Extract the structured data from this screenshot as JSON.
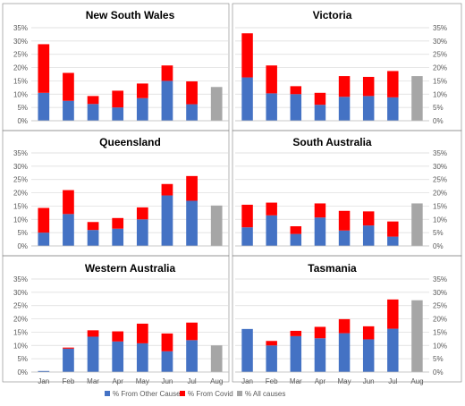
{
  "chart_data": {
    "type": "bar",
    "stacked": true,
    "categories": [
      "Jan",
      "Feb",
      "Mar",
      "Apr",
      "May",
      "Jun",
      "Jul",
      "Aug"
    ],
    "ylim": [
      0,
      35
    ],
    "yticks": [
      "0%",
      "5%",
      "10%",
      "15%",
      "20%",
      "25%",
      "30%",
      "35%"
    ],
    "grid": true,
    "legend_position": "bottom",
    "legend": [
      {
        "label": "% From Other Causes",
        "color": "#4472C4"
      },
      {
        "label": "% From Covid",
        "color": "#FF0000"
      },
      {
        "label": "% All causes",
        "color": "#A6A6A6"
      }
    ],
    "colors": {
      "other": "#4472C4",
      "covid": "#FF0000",
      "all": "#A6A6A6",
      "grid": "#D9D9D9",
      "frame": "#808080"
    },
    "panels": [
      {
        "title": "New South Wales",
        "other": [
          10.5,
          7.5,
          6.3,
          5.0,
          8.5,
          15.0,
          6.2,
          null
        ],
        "covid": [
          18.3,
          10.5,
          3.0,
          6.3,
          5.5,
          5.8,
          8.6,
          null
        ],
        "all_aug": 12.7
      },
      {
        "title": "Victoria",
        "other": [
          16.3,
          10.3,
          10.0,
          6.0,
          9.0,
          9.3,
          8.8,
          null
        ],
        "covid": [
          16.6,
          10.5,
          3.0,
          4.5,
          7.8,
          7.2,
          9.9,
          null
        ],
        "all_aug": 16.8
      },
      {
        "title": "Queensland",
        "other": [
          5.0,
          12.0,
          6.0,
          6.5,
          10.0,
          19.0,
          17.0,
          null
        ],
        "covid": [
          9.3,
          9.0,
          3.0,
          4.0,
          4.5,
          4.3,
          9.3,
          null
        ],
        "all_aug": 15.2
      },
      {
        "title": "South Australia",
        "other": [
          7.0,
          11.5,
          4.5,
          10.7,
          5.8,
          7.7,
          3.5,
          null
        ],
        "covid": [
          8.5,
          4.8,
          2.9,
          5.3,
          7.4,
          5.3,
          5.7,
          null
        ],
        "all_aug": 16.0
      },
      {
        "title": "Western Australia",
        "other": [
          0.4,
          8.8,
          13.3,
          11.5,
          10.8,
          7.8,
          12.0,
          null
        ],
        "covid": [
          0,
          0.4,
          2.4,
          3.8,
          7.4,
          6.7,
          6.6,
          null
        ],
        "all_aug": 10.0
      },
      {
        "title": "Tasmania",
        "other": [
          16.2,
          10.0,
          13.5,
          12.7,
          14.6,
          12.3,
          16.3,
          null
        ],
        "covid": [
          0,
          1.7,
          2.0,
          4.3,
          5.3,
          4.9,
          11.0,
          null
        ],
        "all_aug": 27.0
      }
    ]
  }
}
